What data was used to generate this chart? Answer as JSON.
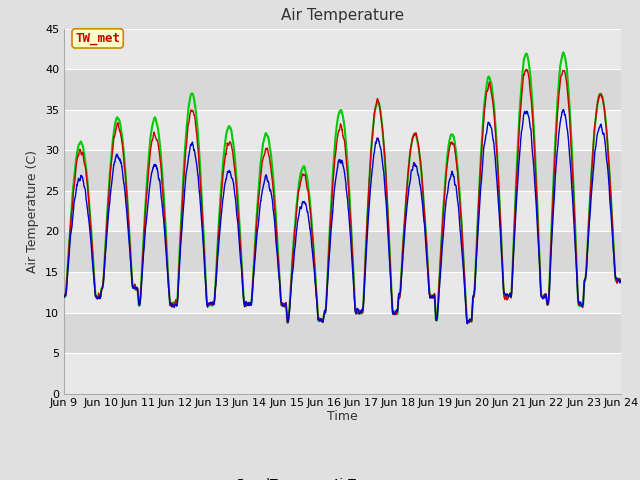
{
  "title": "Air Temperature",
  "ylabel": "Air Temperature (C)",
  "xlabel": "Time",
  "annotation": "TW_met",
  "ylim": [
    0,
    45
  ],
  "xlim": [
    0,
    15
  ],
  "x_tick_labels": [
    "Jun 9",
    "Jun 10",
    "Jun 11",
    "Jun 12",
    "Jun 13",
    "Jun 14",
    "Jun 15",
    "Jun 16",
    "Jun 17",
    "Jun 18",
    "Jun 19",
    "Jun 20",
    "Jun 21",
    "Jun 22",
    "Jun 23",
    "Jun 24"
  ],
  "yticks": [
    0,
    5,
    10,
    15,
    20,
    25,
    30,
    35,
    40,
    45
  ],
  "bg_bands": [
    {
      "ymin": 0,
      "ymax": 5,
      "color": "#e8e8e8"
    },
    {
      "ymin": 5,
      "ymax": 10,
      "color": "#d8d8d8"
    },
    {
      "ymin": 10,
      "ymax": 15,
      "color": "#e8e8e8"
    },
    {
      "ymin": 15,
      "ymax": 20,
      "color": "#d8d8d8"
    },
    {
      "ymin": 20,
      "ymax": 25,
      "color": "#e8e8e8"
    },
    {
      "ymin": 25,
      "ymax": 30,
      "color": "#d8d8d8"
    },
    {
      "ymin": 30,
      "ymax": 35,
      "color": "#e8e8e8"
    },
    {
      "ymin": 35,
      "ymax": 40,
      "color": "#d8d8d8"
    },
    {
      "ymin": 40,
      "ymax": 45,
      "color": "#e8e8e8"
    }
  ],
  "figure_bg": "#e0e0e0",
  "plot_bg": "#e8e8e8",
  "grid_color": "#ffffff",
  "line_colors": {
    "PanelT": "#cc0000",
    "AirT": "#0000cc",
    "AM25T_PRT": "#00cc00"
  },
  "line_widths": {
    "PanelT": 1.0,
    "AirT": 1.0,
    "AM25T_PRT": 1.5
  },
  "annotation_color": "#cc0000",
  "annotation_bg": "#ffffcc",
  "annotation_border": "#cc8800",
  "title_fontsize": 11,
  "axis_fontsize": 9,
  "tick_fontsize": 8,
  "legend_fontsize": 9
}
